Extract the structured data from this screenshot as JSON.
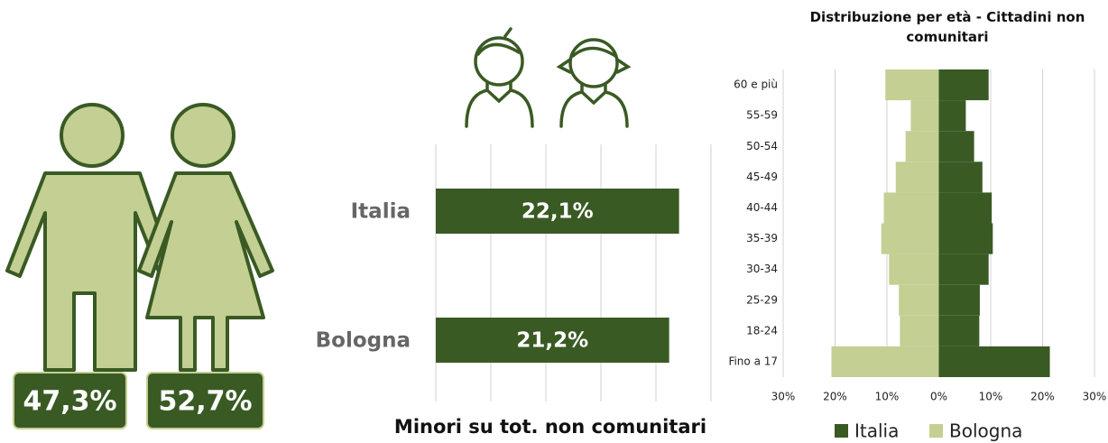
{
  "chart_data": [
    {
      "type": "pictogram",
      "values": [
        47.3,
        52.7
      ],
      "value_labels": [
        "47,3%",
        "52,7%"
      ],
      "color": "#3a5a24",
      "figure_color": "#c3cf93"
    },
    {
      "type": "hbar",
      "categories": [
        "Italia",
        "Bologna"
      ],
      "values": [
        22.1,
        21.2
      ],
      "value_labels": [
        "22,1%",
        "21,2%"
      ],
      "color": "#3a5a24",
      "xlim": [
        0,
        25
      ],
      "xticks": [
        0,
        5,
        10,
        15,
        20,
        25
      ],
      "grid": true,
      "xlabel": "Minori su tot. non comunitari"
    },
    {
      "type": "pyramid",
      "title": "Distribuzione per età - Cittadini non comunitari",
      "categories": [
        "Fino a 17",
        "18-24",
        "25-29",
        "30-34",
        "35-39",
        "40-44",
        "45-49",
        "50-54",
        "55-59",
        "60 e più"
      ],
      "series": [
        {
          "name": "Italia",
          "color": "#3a5a24",
          "values": [
            21.4,
            7.8,
            7.9,
            9.6,
            10.4,
            10.2,
            8.4,
            6.8,
            5.2,
            9.6
          ]
        },
        {
          "name": "Bologna",
          "color": "#c3cf93",
          "values": [
            -20.7,
            -7.5,
            -7.7,
            -9.6,
            -11.1,
            -10.6,
            -8.3,
            -6.4,
            -5.4,
            -10.3
          ]
        }
      ],
      "xlim": [
        -30,
        30
      ],
      "xticks": [
        {
          "value": -30,
          "label": "30%"
        },
        {
          "value": -20,
          "label": "20%"
        },
        {
          "value": -10,
          "label": "10%"
        },
        {
          "value": 0,
          "label": "0%"
        },
        {
          "value": 10,
          "label": "10%"
        },
        {
          "value": 20,
          "label": "20%"
        },
        {
          "value": 30,
          "label": "30%"
        }
      ],
      "grid": true,
      "legend": "bottom"
    }
  ]
}
